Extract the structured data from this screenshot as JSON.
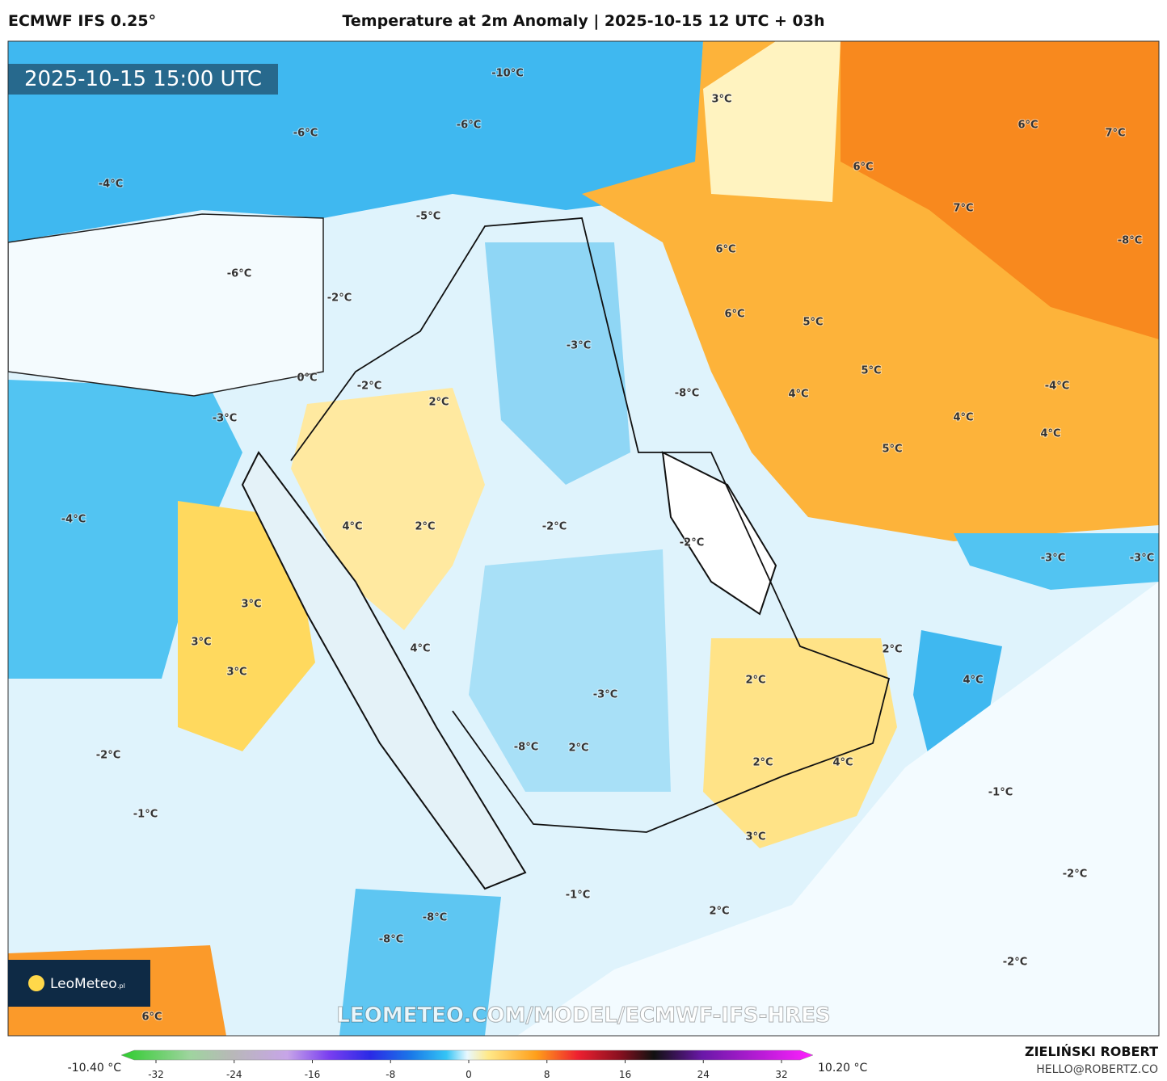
{
  "header": {
    "model": "ECMWF IFS 0.25°",
    "title": "Temperature at 2m Anomaly | 2025-10-15 12 UTC + 03h"
  },
  "timestamp": "2025-10-15 15:00 UTC",
  "map_labels": [
    "-10°C",
    "3°C",
    "-6°C",
    "-6°C",
    "6°C",
    "7°C",
    "-4°C",
    "6°C",
    "-5°C",
    "7°C",
    "-8°C",
    "6°C",
    "-6°C",
    "-2°C",
    "6°C",
    "5°C",
    "-3°C",
    "5°C",
    "0°C",
    "-2°C",
    "-8°C",
    "4°C",
    "2°C",
    "-4°C",
    "-3°C",
    "4°C",
    "4°C",
    "5°C",
    "-4°C",
    "4°C",
    "2°C",
    "-2°C",
    "-2°C",
    "-3°C",
    "-3°C",
    "3°C",
    "3°C",
    "4°C",
    "2°C",
    "3°C",
    "2°C",
    "4°C",
    "-3°C",
    "-8°C",
    "2°C",
    "-2°C",
    "2°C",
    "4°C",
    "-1°C",
    "-1°C",
    "3°C",
    "-2°C",
    "-1°C",
    "2°C",
    "-8°C",
    "-8°C",
    "-2°C",
    "6°C"
  ],
  "watermark": "LEOMETEO.COM/MODEL/ECMWF-IFS-HRES",
  "logo": {
    "name": "LeoMeteo",
    "suffix": ".pl"
  },
  "colorbar": {
    "min_label": "-10.40 °C",
    "max_label": "10.20 °C",
    "range": [
      -32,
      32
    ],
    "ticks": [
      -32,
      -24,
      -16,
      -8,
      0,
      8,
      16,
      24,
      32
    ]
  },
  "credit": {
    "author": "ZIELIŃSKI ROBERT",
    "email": "HELLO@ROBERTZ.CO"
  }
}
